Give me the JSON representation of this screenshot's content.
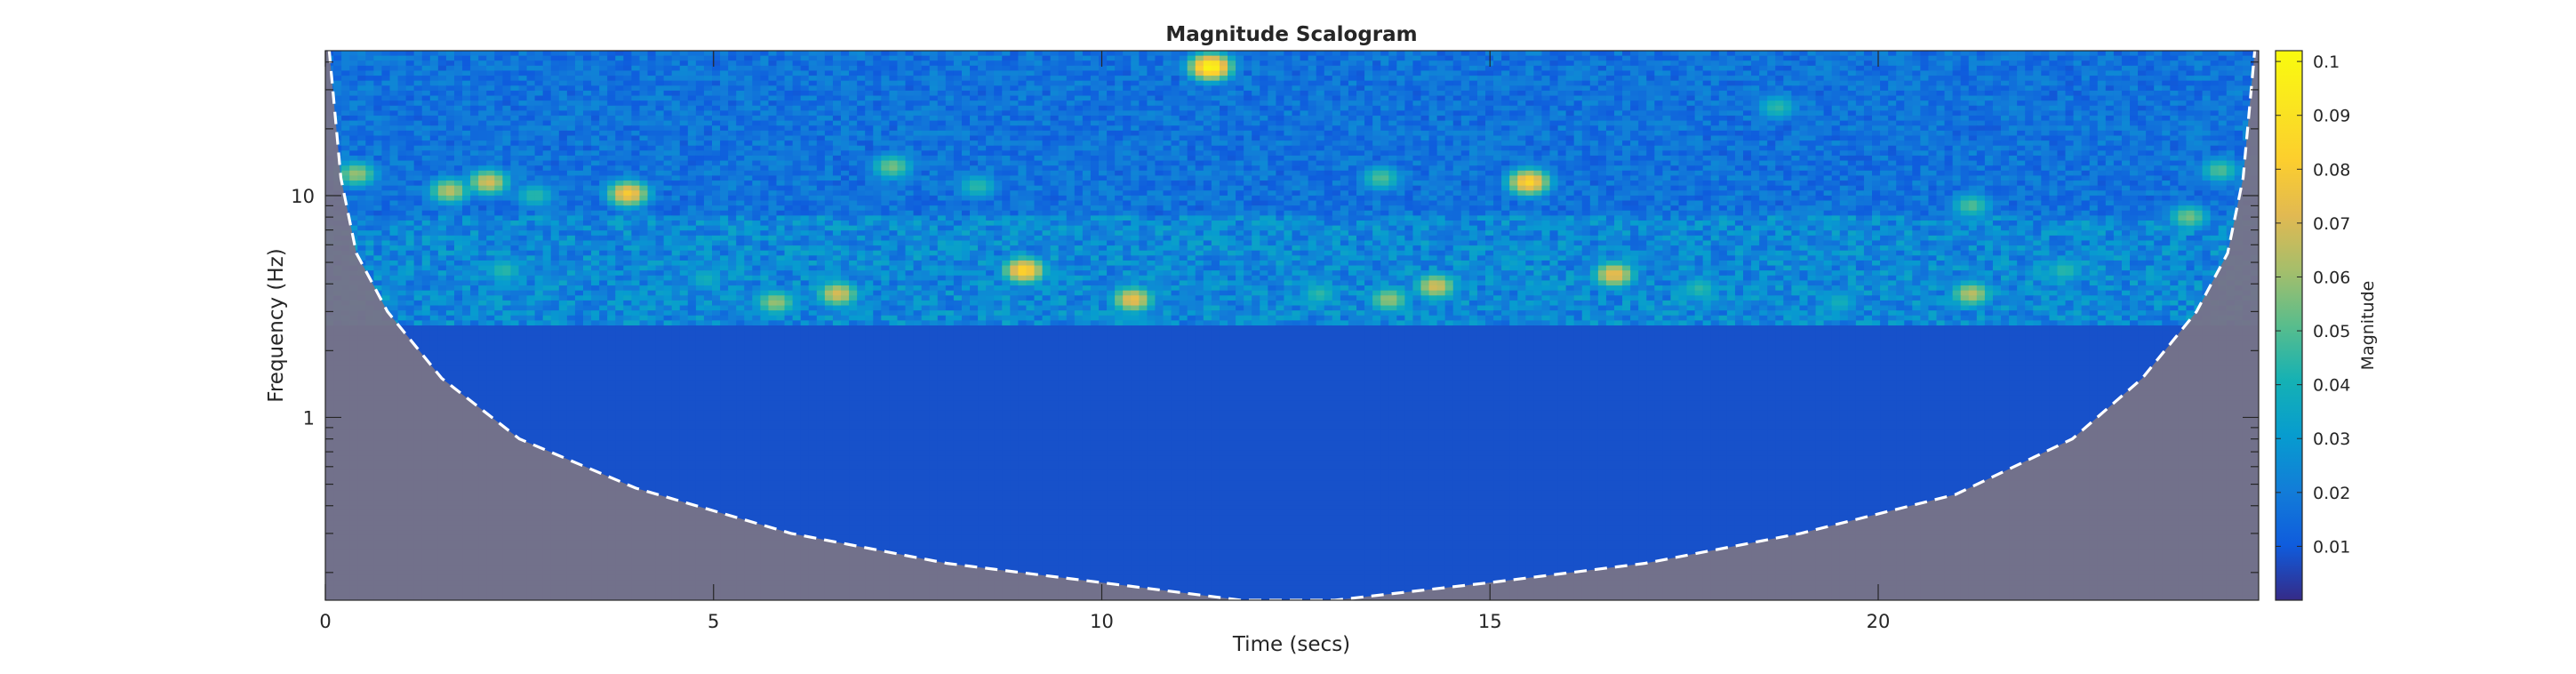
{
  "chart_data": {
    "type": "heatmap",
    "subtype": "wavelet-scalogram",
    "title": "Magnitude Scalogram",
    "xlabel": "Time (secs)",
    "ylabel": "Frequency (Hz)",
    "xlim": [
      0,
      24.9
    ],
    "xticks": [
      0,
      5,
      10,
      15,
      20
    ],
    "xtick_labels": [
      "0",
      "5",
      "10",
      "15",
      "20"
    ],
    "ylim": [
      0.15,
      45
    ],
    "yscale": "log",
    "yticks": [
      1,
      10
    ],
    "ytick_labels": [
      "1",
      "10"
    ],
    "colormap": "parula",
    "colorbar": {
      "label": "Magnitude",
      "range": [
        0,
        0.102
      ],
      "ticks": [
        0.01,
        0.02,
        0.03,
        0.04,
        0.05,
        0.06,
        0.07,
        0.08,
        0.09,
        0.1
      ],
      "tick_labels": [
        "0.01",
        "0.02",
        "0.03",
        "0.04",
        "0.05",
        "0.06",
        "0.07",
        "0.08",
        "0.09",
        "0.1"
      ]
    },
    "cone_of_influence": {
      "style": "white dashed, shaded outside",
      "shade_color": "#7a7387",
      "points": [
        {
          "t": 0.05,
          "f": 45
        },
        {
          "t": 0.2,
          "f": 12
        },
        {
          "t": 0.4,
          "f": 5.5
        },
        {
          "t": 0.8,
          "f": 3.0
        },
        {
          "t": 1.5,
          "f": 1.5
        },
        {
          "t": 2.5,
          "f": 0.8
        },
        {
          "t": 4.0,
          "f": 0.48
        },
        {
          "t": 6.0,
          "f": 0.3
        },
        {
          "t": 8.0,
          "f": 0.22
        },
        {
          "t": 10.0,
          "f": 0.18
        },
        {
          "t": 11.8,
          "f": 0.15
        },
        {
          "t": 13.0,
          "f": 0.15
        },
        {
          "t": 15.0,
          "f": 0.18
        },
        {
          "t": 17.0,
          "f": 0.22
        },
        {
          "t": 19.0,
          "f": 0.3
        },
        {
          "t": 21.0,
          "f": 0.45
        },
        {
          "t": 22.5,
          "f": 0.8
        },
        {
          "t": 23.4,
          "f": 1.5
        },
        {
          "t": 24.1,
          "f": 3.0
        },
        {
          "t": 24.5,
          "f": 5.5
        },
        {
          "t": 24.7,
          "f": 12
        },
        {
          "t": 24.85,
          "f": 45
        }
      ]
    },
    "base_levels": [
      {
        "f_min": 8,
        "f_max": 45,
        "magnitude": 0.017
      },
      {
        "f_min": 2.6,
        "f_max": 8,
        "magnitude": 0.024
      },
      {
        "f_min": 0.15,
        "f_max": 2.6,
        "magnitude": 0.008
      }
    ],
    "hotspots": [
      {
        "t": 11.4,
        "f": 38,
        "magnitude": 0.1
      },
      {
        "t": 9.0,
        "f": 4.6,
        "magnitude": 0.085
      },
      {
        "t": 15.5,
        "f": 11.5,
        "magnitude": 0.085
      },
      {
        "t": 3.9,
        "f": 10.2,
        "magnitude": 0.08
      },
      {
        "t": 10.4,
        "f": 3.4,
        "magnitude": 0.075
      },
      {
        "t": 16.6,
        "f": 4.4,
        "magnitude": 0.075
      },
      {
        "t": 2.1,
        "f": 11.5,
        "magnitude": 0.07
      },
      {
        "t": 1.6,
        "f": 10.5,
        "magnitude": 0.065
      },
      {
        "t": 6.6,
        "f": 3.6,
        "magnitude": 0.07
      },
      {
        "t": 5.8,
        "f": 3.3,
        "magnitude": 0.06
      },
      {
        "t": 14.3,
        "f": 3.9,
        "magnitude": 0.07
      },
      {
        "t": 13.7,
        "f": 3.4,
        "magnitude": 0.06
      },
      {
        "t": 21.2,
        "f": 3.6,
        "magnitude": 0.065
      },
      {
        "t": 0.4,
        "f": 12.5,
        "magnitude": 0.06
      },
      {
        "t": 7.3,
        "f": 13.5,
        "magnitude": 0.055
      },
      {
        "t": 13.6,
        "f": 12,
        "magnitude": 0.05
      },
      {
        "t": 18.7,
        "f": 25,
        "magnitude": 0.045
      },
      {
        "t": 21.2,
        "f": 9,
        "magnitude": 0.05
      },
      {
        "t": 24.0,
        "f": 8,
        "magnitude": 0.055
      },
      {
        "t": 24.4,
        "f": 13,
        "magnitude": 0.05
      },
      {
        "t": 2.3,
        "f": 4.6,
        "magnitude": 0.045
      },
      {
        "t": 8.4,
        "f": 11,
        "magnitude": 0.045
      },
      {
        "t": 17.7,
        "f": 3.8,
        "magnitude": 0.045
      },
      {
        "t": 12.8,
        "f": 3.6,
        "magnitude": 0.045
      },
      {
        "t": 19.5,
        "f": 3.3,
        "magnitude": 0.04
      },
      {
        "t": 22.4,
        "f": 4.6,
        "magnitude": 0.045
      },
      {
        "t": 4.9,
        "f": 4.2,
        "magnitude": 0.04
      },
      {
        "t": 2.7,
        "f": 10,
        "magnitude": 0.045
      }
    ]
  }
}
